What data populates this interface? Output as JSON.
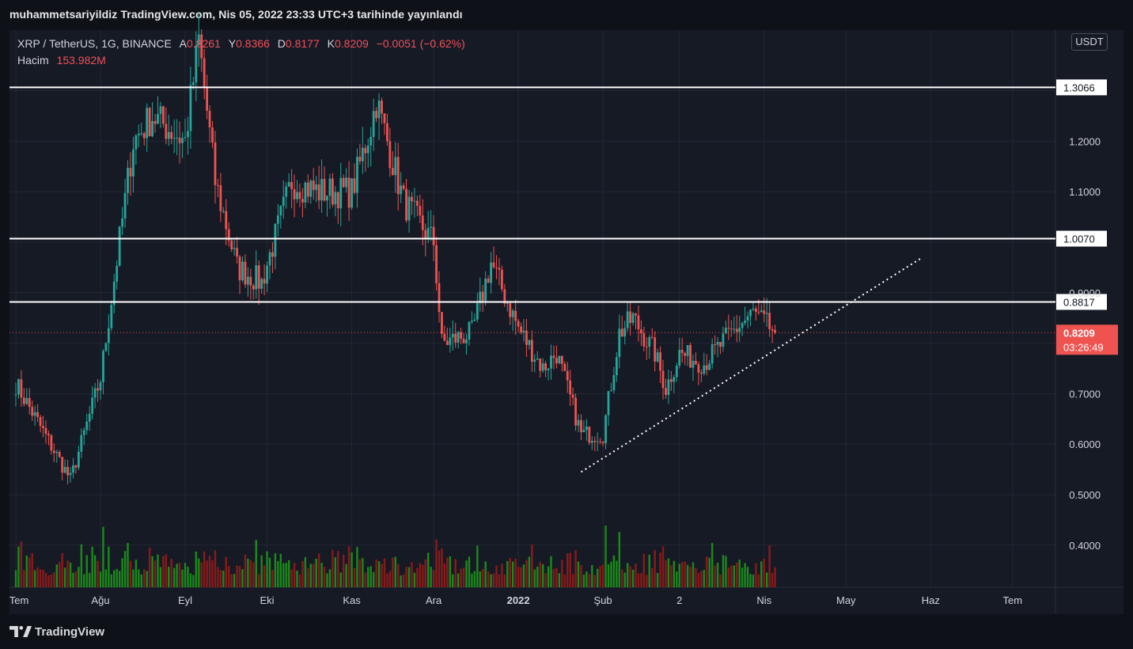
{
  "publish_bar": "muhammetsariyildiz TradingView.com, Nis 05, 2022 23:33 UTC+3 tarihinde yayınlandı",
  "legend": {
    "symbol": "XRP / TetherUS, 1G, BINANCE",
    "open_label": "A",
    "open": "0.8261",
    "high_label": "Y",
    "high": "0.8366",
    "low_label": "D",
    "low": "0.8177",
    "close_label": "K",
    "close": "0.8209",
    "change": "−0.0051 (−0.62%)",
    "volume_label": "Hacim",
    "volume": "153.982M"
  },
  "unit": "USDT",
  "footer": {
    "brand": "TradingView"
  },
  "colors": {
    "background": "#161a25",
    "up": "#26a69a",
    "down": "#ef5350",
    "volume_up": "#1b8a1b",
    "volume_down": "#8a1a1a",
    "level_line": "#ffffff",
    "trendline": "#ffffff",
    "grid": "#232734",
    "axis_text": "#d1d4dc"
  },
  "chart_data": {
    "type": "candlestick",
    "symbol": "XRP / TetherUS",
    "interval": "1G",
    "exchange": "BINANCE",
    "y_ticks": [
      "1.2000",
      "1.1000",
      "0.9000",
      "0.7000",
      "0.6000",
      "0.5000",
      "0.4000"
    ],
    "y_range": [
      0.3,
      1.32
    ],
    "x_ticks": [
      "Tem",
      "Ağu",
      "Eyl",
      "Eki",
      "Kas",
      "Ara",
      "2022",
      "Şub",
      "2",
      "Nis",
      "May",
      "Haz",
      "Tem"
    ],
    "horizontal_levels": [
      "1.3066",
      "1.0070",
      "0.8817"
    ],
    "last_price": {
      "value": "0.8209",
      "countdown": "03:26:49"
    },
    "ohlc_key_points": [
      {
        "date": "2021-07-01",
        "close": 0.72
      },
      {
        "date": "2021-07-21",
        "close": 0.53
      },
      {
        "date": "2021-08-01",
        "close": 0.73
      },
      {
        "date": "2021-08-13",
        "close": 1.2
      },
      {
        "date": "2021-08-20",
        "close": 1.25
      },
      {
        "date": "2021-09-01",
        "close": 1.2
      },
      {
        "date": "2021-09-06",
        "close": 1.4
      },
      {
        "date": "2021-09-12",
        "close": 1.12
      },
      {
        "date": "2021-09-20",
        "close": 0.95
      },
      {
        "date": "2021-09-29",
        "close": 0.92
      },
      {
        "date": "2021-10-10",
        "close": 1.12
      },
      {
        "date": "2021-10-20",
        "close": 1.1
      },
      {
        "date": "2021-11-01",
        "close": 1.1
      },
      {
        "date": "2021-11-08",
        "close": 1.23
      },
      {
        "date": "2021-11-10",
        "close": 1.28
      },
      {
        "date": "2021-11-20",
        "close": 1.08
      },
      {
        "date": "2021-12-01",
        "close": 1.0
      },
      {
        "date": "2021-12-04",
        "close": 0.8
      },
      {
        "date": "2021-12-15",
        "close": 0.82
      },
      {
        "date": "2021-12-22",
        "close": 0.96
      },
      {
        "date": "2022-01-01",
        "close": 0.83
      },
      {
        "date": "2022-01-10",
        "close": 0.75
      },
      {
        "date": "2022-01-15",
        "close": 0.78
      },
      {
        "date": "2022-01-24",
        "close": 0.62
      },
      {
        "date": "2022-02-01",
        "close": 0.62
      },
      {
        "date": "2022-02-07",
        "close": 0.82
      },
      {
        "date": "2022-02-12",
        "close": 0.85
      },
      {
        "date": "2022-02-20",
        "close": 0.78
      },
      {
        "date": "2022-02-24",
        "close": 0.71
      },
      {
        "date": "2022-03-01",
        "close": 0.78
      },
      {
        "date": "2022-03-10",
        "close": 0.76
      },
      {
        "date": "2022-03-20",
        "close": 0.82
      },
      {
        "date": "2022-03-28",
        "close": 0.86
      },
      {
        "date": "2022-04-05",
        "close": 0.8209
      }
    ],
    "trendline": {
      "from": {
        "date": "2022-01-24",
        "price": 0.545
      },
      "to": {
        "date": "2022-05-29",
        "price": 0.97
      }
    },
    "volume_series": "daily bars, green = up day, red = down day"
  }
}
